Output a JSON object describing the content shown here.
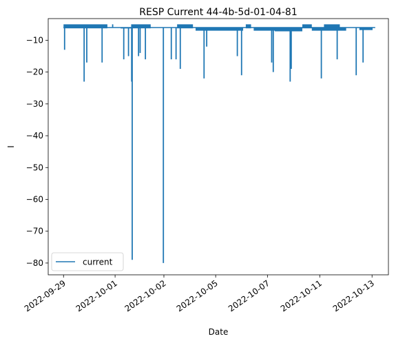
{
  "chart_data": {
    "type": "line",
    "title": "RESP Current 44-4b-5d-01-04-81",
    "xlabel": "Date",
    "ylabel": "I",
    "x_ticks": [
      "2022-09-29",
      "2022-10-01",
      "2022-10-02",
      "2022-10-05",
      "2022-10-07",
      "2022-10-11",
      "2022-10-13"
    ],
    "x_tick_positions": [
      0.0,
      0.976,
      1.9,
      2.88,
      3.86,
      4.85,
      5.84
    ],
    "xlim": [
      -0.29,
      6.15
    ],
    "ylim": [
      -83.7,
      -3.2
    ],
    "y_ticks": [
      -10,
      -20,
      -30,
      -40,
      -50,
      -60,
      -70,
      -80
    ],
    "grid": false,
    "legend": {
      "entries": [
        "current"
      ],
      "placement": "lower-left"
    },
    "colors": {
      "series": "#1f77b4"
    },
    "series": [
      {
        "name": "current",
        "base": -6,
        "top": -5,
        "busy_segments": [
          [
            0.0,
            0.83
          ],
          [
            1.28,
            1.65
          ],
          [
            2.15,
            2.45
          ],
          [
            3.45,
            3.55
          ],
          [
            4.52,
            4.7
          ],
          [
            4.93,
            5.23
          ]
        ],
        "lower_bands": [
          [
            1.08,
            1.28,
            -6.3
          ],
          [
            2.5,
            3.4,
            -7.0
          ],
          [
            3.6,
            4.5,
            -7.0
          ],
          [
            4.0,
            4.52,
            -7.2
          ],
          [
            4.7,
            5.35,
            -7.0
          ],
          [
            5.6,
            5.85,
            -6.8
          ]
        ],
        "spikes": [
          [
            0.02,
            -13
          ],
          [
            0.39,
            -23
          ],
          [
            0.44,
            -17
          ],
          [
            0.73,
            -17
          ],
          [
            0.93,
            -5
          ],
          [
            1.14,
            -16
          ],
          [
            1.23,
            -15
          ],
          [
            1.29,
            -23
          ],
          [
            1.3,
            -79
          ],
          [
            1.42,
            -15
          ],
          [
            1.45,
            -14
          ],
          [
            1.55,
            -16
          ],
          [
            1.89,
            -80
          ],
          [
            2.04,
            -16
          ],
          [
            2.13,
            -16
          ],
          [
            2.21,
            -19
          ],
          [
            2.66,
            -22
          ],
          [
            2.71,
            -12
          ],
          [
            3.29,
            -15
          ],
          [
            3.37,
            -21
          ],
          [
            3.94,
            -17
          ],
          [
            3.97,
            -20
          ],
          [
            4.29,
            -23
          ],
          [
            4.31,
            -19
          ],
          [
            4.88,
            -22
          ],
          [
            5.18,
            -16
          ],
          [
            5.54,
            -21
          ],
          [
            5.67,
            -17
          ]
        ],
        "x_end": 5.9
      }
    ]
  }
}
